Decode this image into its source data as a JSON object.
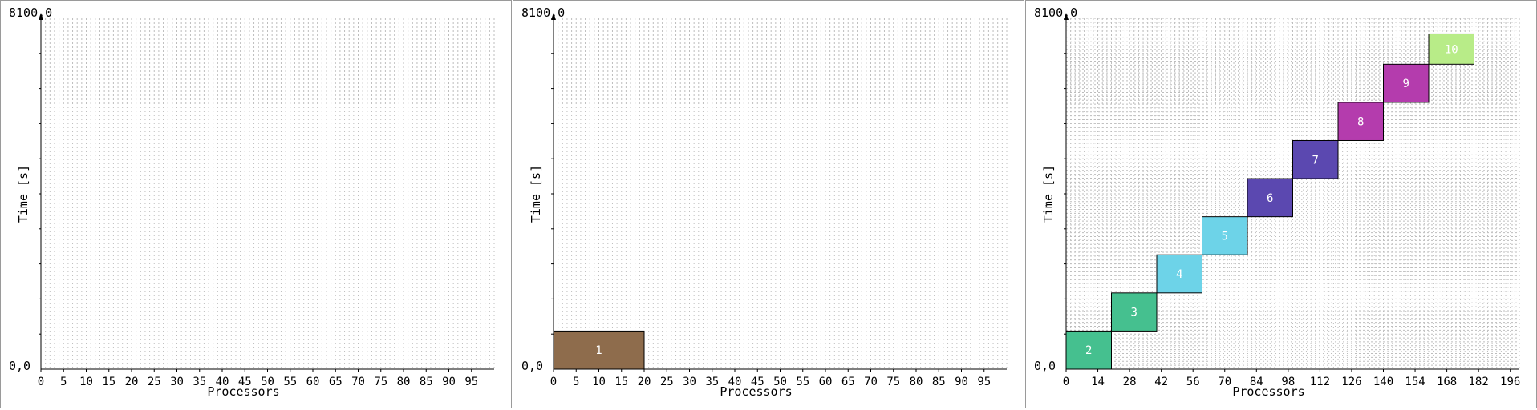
{
  "chart_data": [
    {
      "type": "gantt",
      "ytop_label": "8100,0",
      "ybottom_label": "0,0",
      "xlabel": "Processors",
      "ylabel": "Time [s]",
      "xlim": [
        0,
        100
      ],
      "ylim": [
        0,
        8100
      ],
      "xticks": [
        0,
        5,
        10,
        15,
        20,
        25,
        30,
        35,
        40,
        45,
        50,
        55,
        60,
        65,
        70,
        75,
        80,
        85,
        90,
        95
      ],
      "grid": true,
      "jobs": []
    },
    {
      "type": "gantt",
      "ytop_label": "8100,0",
      "ybottom_label": "0,0",
      "xlabel": "Processors",
      "ylabel": "Time [s]",
      "xlim": [
        0,
        100
      ],
      "ylim": [
        0,
        8100
      ],
      "xticks": [
        0,
        5,
        10,
        15,
        20,
        25,
        30,
        35,
        40,
        45,
        50,
        55,
        60,
        65,
        70,
        75,
        80,
        85,
        90,
        95
      ],
      "grid": true,
      "jobs": [
        {
          "id": "1",
          "x0": 0,
          "x1": 20,
          "y0": 0,
          "y1": 880,
          "color": "#8e6c4c"
        }
      ]
    },
    {
      "type": "gantt",
      "ytop_label": "8100,0",
      "ybottom_label": "0,0",
      "xlabel": "Processors",
      "ylabel": "Time [s]",
      "xlim": [
        0,
        200
      ],
      "ylim": [
        0,
        8100
      ],
      "xticks": [
        0,
        14,
        28,
        42,
        56,
        70,
        84,
        98,
        112,
        126,
        140,
        154,
        168,
        182,
        196
      ],
      "grid": true,
      "jobs": [
        {
          "id": "2",
          "x0": 0,
          "x1": 20,
          "y0": 0,
          "y1": 880,
          "color": "#45c08f"
        },
        {
          "id": "3",
          "x0": 20,
          "x1": 40,
          "y0": 880,
          "y1": 1760,
          "color": "#45c08f"
        },
        {
          "id": "4",
          "x0": 40,
          "x1": 60,
          "y0": 1760,
          "y1": 2640,
          "color": "#6dd3e8"
        },
        {
          "id": "5",
          "x0": 60,
          "x1": 80,
          "y0": 2640,
          "y1": 3520,
          "color": "#6dd3e8"
        },
        {
          "id": "6",
          "x0": 80,
          "x1": 100,
          "y0": 3520,
          "y1": 4400,
          "color": "#5b48b0"
        },
        {
          "id": "7",
          "x0": 100,
          "x1": 120,
          "y0": 4400,
          "y1": 5280,
          "color": "#5b48b0"
        },
        {
          "id": "8",
          "x0": 120,
          "x1": 140,
          "y0": 5280,
          "y1": 6160,
          "color": "#b43cad"
        },
        {
          "id": "9",
          "x0": 140,
          "x1": 160,
          "y0": 6160,
          "y1": 7040,
          "color": "#b43cad"
        },
        {
          "id": "10",
          "x0": 160,
          "x1": 180,
          "y0": 7040,
          "y1": 7740,
          "color": "#b8ec88"
        }
      ]
    }
  ]
}
